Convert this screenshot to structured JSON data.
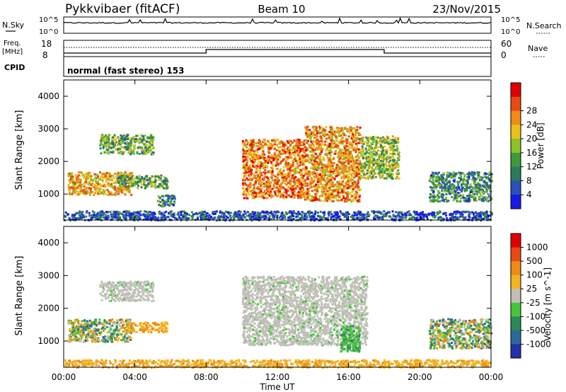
{
  "header": {
    "radar": "Pykkvibaer (fitACF)",
    "beam": "Beam 10",
    "date": "23/Nov/2015"
  },
  "top_panels": {
    "nsky_label": "N.Sky",
    "nsky_hi": "10^5",
    "nsky_lo": "10^0",
    "nsearch_hi": "10^5",
    "nsearch_lo": "10^0",
    "nsearch_label": "N.Search",
    "freq_label_1": "Freq.",
    "freq_label_2": "[MHz]",
    "freq_hi": "18",
    "freq_lo": "8",
    "nave_hi": "60",
    "nave_lo": "0",
    "nave_label": "Nave",
    "cpid_label": "CPID",
    "cpid_value": "normal (fast stereo) 153"
  },
  "chart_data": [
    {
      "type": "heatmap",
      "name": "power",
      "ylabel": "Slant Range [km]",
      "ylim": [
        200,
        4500
      ],
      "yticks": [
        "1000",
        "2000",
        "3000",
        "4000"
      ],
      "xlim": [
        "00:00",
        "24:00"
      ],
      "colorbar_label": "Power [dB]",
      "colorbar_ticks": [
        "4",
        "8",
        "12",
        "16",
        "20",
        "24",
        "28"
      ],
      "colorbar_colors": [
        "#1a1ae6",
        "#2a52b8",
        "#2e7a5c",
        "#3c9a3c",
        "#8cc22c",
        "#e6c21a",
        "#f08c14",
        "#e84a14",
        "#e00000"
      ],
      "scatter_regions": [
        {
          "t": [
            0.2,
            3.8
          ],
          "r": [
            1000,
            1700
          ],
          "level": 0.75
        },
        {
          "t": [
            2.0,
            5.0
          ],
          "r": [
            2250,
            2850
          ],
          "level": 0.45
        },
        {
          "t": [
            3.0,
            5.8
          ],
          "r": [
            1200,
            1600
          ],
          "level": 0.45
        },
        {
          "t": [
            5.2,
            6.2
          ],
          "r": [
            650,
            1000
          ],
          "level": 0.35
        },
        {
          "t": [
            10.0,
            13.5
          ],
          "r": [
            900,
            2700
          ],
          "level": 0.85
        },
        {
          "t": [
            13.5,
            16.6
          ],
          "r": [
            800,
            3100
          ],
          "level": 0.8
        },
        {
          "t": [
            16.6,
            18.8
          ],
          "r": [
            1500,
            2800
          ],
          "level": 0.55
        },
        {
          "t": [
            20.5,
            24.0
          ],
          "r": [
            800,
            1700
          ],
          "level": 0.35
        },
        {
          "t": [
            0,
            24
          ],
          "r": [
            220,
            500
          ],
          "level": 0.2
        }
      ]
    },
    {
      "type": "heatmap",
      "name": "velocity",
      "ylabel": "Slant Range [km]",
      "ylim": [
        200,
        4500
      ],
      "yticks": [
        "1000",
        "2000",
        "3000",
        "4000"
      ],
      "xlabel": "Time UT",
      "xticks": [
        "00:00",
        "04:00",
        "08:00",
        "12:00",
        "16:00",
        "20:00",
        "00:00"
      ],
      "xlim": [
        "00:00",
        "24:00"
      ],
      "colorbar_label": "Velocity [m s^-1]",
      "colorbar_ticks": [
        "1000",
        "500",
        "100",
        "25",
        "-25",
        "-100",
        "-500",
        "-1000"
      ],
      "colorbar_colors": [
        "#2332a6",
        "#2a6a9a",
        "#2c8a5a",
        "#48c43a",
        "#c0c0b8",
        "#f0b420",
        "#f08a14",
        "#e84a14",
        "#e00000"
      ],
      "scatter_regions": [
        {
          "t": [
            0.2,
            3.8
          ],
          "r": [
            1000,
            1700
          ],
          "kind": "mixed"
        },
        {
          "t": [
            2.0,
            5.0
          ],
          "r": [
            2250,
            2850
          ],
          "kind": "gray"
        },
        {
          "t": [
            3.5,
            5.8
          ],
          "r": [
            1300,
            1600
          ],
          "kind": "orange"
        },
        {
          "t": [
            10.0,
            17.0
          ],
          "r": [
            900,
            3000
          ],
          "kind": "gray"
        },
        {
          "t": [
            15.5,
            16.6
          ],
          "r": [
            700,
            1500
          ],
          "kind": "green"
        },
        {
          "t": [
            20.5,
            24.0
          ],
          "r": [
            800,
            1700
          ],
          "kind": "mixed"
        },
        {
          "t": [
            0,
            24
          ],
          "r": [
            220,
            450
          ],
          "kind": "orange"
        }
      ]
    }
  ]
}
